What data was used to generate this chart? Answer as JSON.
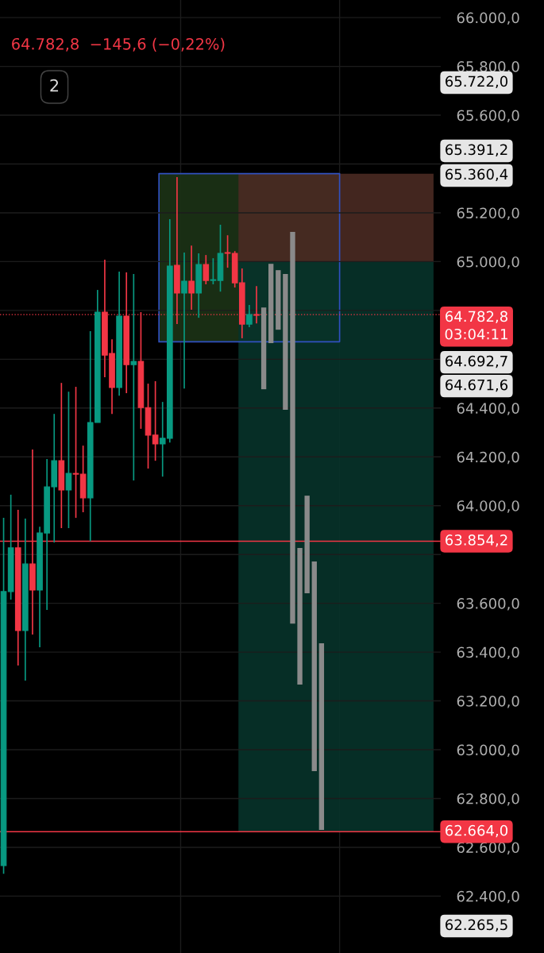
{
  "chart_data": {
    "type": "candlestick",
    "subtitle": "64.782,8  −145,6 (−0,22%)",
    "annotations": [
      "03:04:11",
      "2",
      "65.722,0",
      "65.391,2",
      "65.360,4",
      "64.692,7",
      "64.671,6",
      "62.265,5"
    ],
    "categories": [
      null,
      null,
      null,
      null,
      null,
      null,
      null,
      null,
      null,
      null,
      null,
      null,
      null,
      null,
      null,
      null,
      null,
      null,
      null,
      null,
      null,
      null,
      null,
      null,
      null,
      null,
      null,
      null,
      null,
      null,
      null,
      null,
      null,
      null,
      null,
      null,
      null,
      null,
      null,
      null,
      null,
      null,
      null,
      null,
      null,
      null,
      null,
      null,
      null,
      null,
      null,
      null,
      null,
      null,
      null,
      null,
      null,
      null,
      null,
      null,
      null
    ],
    "series": [
      {
        "type": "candlestick",
        "colors": [
          "#089981",
          "#089981",
          "#f23645",
          "#089981",
          "#f23645",
          "#089981",
          "#089981",
          "#089981",
          "#f23645",
          "#089981",
          "#f23645",
          "#f23645",
          "#089981",
          "#089981",
          "#f23645",
          "#f23645",
          "#089981",
          "#f23645",
          "#089981",
          "#f23645",
          "#f23645",
          "#f23645",
          "#089981",
          "#089981",
          "#f23645",
          "#089981",
          "#f23645",
          "#089981",
          "#f23645",
          "#089981",
          "#089981",
          "#f23645",
          "#f23645",
          "#f23645",
          "#089981",
          "#f23645",
          null,
          null,
          null,
          null,
          null,
          null,
          null,
          null,
          null,
          null,
          null,
          null,
          null,
          null,
          null,
          null,
          null,
          null,
          null,
          null,
          null,
          null,
          null,
          null,
          null
        ],
        "ohlc": [
          [
            62525,
            63950,
            62492,
            63648
          ],
          [
            63648,
            64045,
            63615,
            63827
          ],
          [
            63827,
            63983,
            63345,
            63488
          ],
          [
            63488,
            63947,
            63283,
            63761
          ],
          [
            63761,
            64230,
            63472,
            63654
          ],
          [
            63654,
            63914,
            63420,
            63888
          ],
          [
            63888,
            64191,
            63573,
            64077
          ],
          [
            64077,
            64376,
            63849,
            64184
          ],
          [
            64184,
            64503,
            63908,
            64064
          ],
          [
            64064,
            64467,
            63908,
            64132
          ],
          [
            64132,
            64487,
            63950,
            64129
          ],
          [
            64129,
            64246,
            63973,
            64032
          ],
          [
            64032,
            64715,
            63854,
            64341
          ],
          [
            64341,
            64884,
            64341,
            64793
          ],
          [
            64793,
            65008,
            64526,
            64617
          ],
          [
            64624,
            64682,
            64376,
            64484
          ],
          [
            64484,
            64959,
            64451,
            64777
          ],
          [
            64777,
            64956,
            64461,
            64578
          ],
          [
            64578,
            64949,
            64103,
            64591
          ],
          [
            64591,
            64793,
            64315,
            64402
          ],
          [
            64402,
            64500,
            64152,
            64289
          ],
          [
            64289,
            64510,
            64184,
            64253
          ],
          [
            64253,
            64425,
            64119,
            64276
          ],
          [
            64276,
            65174,
            64259,
            64982
          ],
          [
            64985,
            65346,
            64744,
            64871
          ],
          [
            64871,
            65037,
            64480,
            64920
          ],
          [
            64920,
            65066,
            64803,
            64871
          ],
          [
            64871,
            65034,
            64770,
            64988
          ],
          [
            64988,
            65027,
            64907,
            64923
          ],
          [
            64923,
            65014,
            64907,
            64926
          ],
          [
            64923,
            65151,
            64877,
            65034
          ],
          [
            65037,
            65108,
            64975,
            65034
          ],
          [
            65034,
            65043,
            64894,
            64913
          ],
          [
            64913,
            64972,
            64686,
            64744
          ],
          [
            64744,
            64822,
            64731,
            64783
          ],
          [
            64780,
            64900,
            64747,
            64783
          ],
          null,
          null,
          null,
          null,
          null,
          null,
          null,
          null,
          null,
          null,
          null,
          null,
          null,
          null,
          null,
          null,
          null,
          null,
          null,
          null,
          null,
          null,
          null,
          null,
          null
        ]
      },
      {
        "type": "bar",
        "color": "#8a8a8a",
        "base": [
          null,
          null,
          null,
          null,
          null,
          null,
          null,
          null,
          null,
          null,
          null,
          null,
          null,
          null,
          null,
          null,
          null,
          null,
          null,
          null,
          null,
          null,
          null,
          null,
          null,
          null,
          null,
          null,
          null,
          null,
          null,
          null,
          null,
          null,
          null,
          null,
          64477,
          64666,
          64721,
          64393,
          63517,
          63267,
          63641,
          62912,
          62671,
          null,
          null,
          null,
          null,
          null,
          null,
          null,
          null,
          null,
          null,
          null,
          null,
          null,
          null,
          null,
          null
        ],
        "values": [
          null,
          null,
          null,
          null,
          null,
          null,
          null,
          null,
          null,
          null,
          null,
          null,
          null,
          null,
          null,
          null,
          null,
          null,
          null,
          null,
          null,
          null,
          null,
          null,
          null,
          null,
          null,
          null,
          null,
          null,
          null,
          null,
          null,
          null,
          null,
          null,
          335,
          325,
          244,
          556,
          1605,
          560,
          400,
          859,
          765,
          null,
          null,
          null,
          null,
          null,
          null,
          null,
          null,
          null,
          null,
          null,
          null,
          null,
          null,
          null,
          null
        ]
      }
    ],
    "ylim": [
      62167,
      66072
    ],
    "yticks": [
      {
        "value": 66000,
        "label": "66.000,0"
      },
      {
        "value": 65800,
        "label": "65.800,0"
      },
      {
        "value": 65600,
        "label": "65.600,0"
      },
      {
        "value": 65400,
        "label": null
      },
      {
        "value": 65200,
        "label": "65.200,0"
      },
      {
        "value": 65000,
        "label": "65.000,0"
      },
      {
        "value": 64800,
        "label": null
      },
      {
        "value": 64600,
        "label": null
      },
      {
        "value": 64400,
        "label": "64.400,0"
      },
      {
        "value": 64200,
        "label": "64.200,0"
      },
      {
        "value": 64000,
        "label": "64.000,0"
      },
      {
        "value": 63800,
        "label": null
      },
      {
        "value": 63600,
        "label": "63.600,0"
      },
      {
        "value": 63400,
        "label": "63.400,0"
      },
      {
        "value": 63200,
        "label": "63.200,0"
      },
      {
        "value": 63000,
        "label": "63.000,0"
      },
      {
        "value": 62800,
        "label": "62.800,0"
      },
      {
        "value": 62600,
        "label": "62.600,0"
      },
      {
        "value": 62400,
        "label": "62.400,0"
      }
    ],
    "grid": true,
    "bands": [
      {
        "axis": "y",
        "from": 64671.6,
        "to": 65360.4,
        "color": "#1c3316"
      },
      {
        "axis": "y",
        "from": 65000,
        "to": 65360.4,
        "color": "#4a2a22"
      },
      {
        "axis": "y",
        "from": 62664,
        "to": 65000,
        "color": "#07332a"
      }
    ],
    "ref_lines": [
      {
        "axis": "y",
        "value": 64782.8,
        "label": "64.782,8",
        "color": "#f23645",
        "line_style": "dotted"
      },
      {
        "axis": "y",
        "value": 63854.2,
        "label": "63.854,2",
        "color": "#f23645",
        "line_style": "solid"
      },
      {
        "axis": "y",
        "value": 62664.0,
        "label": "62.664,0",
        "color": "#f23645",
        "line_style": "solid"
      }
    ]
  }
}
